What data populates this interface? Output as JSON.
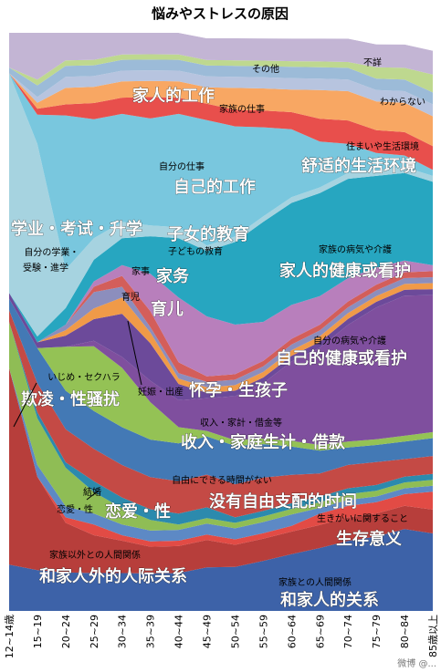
{
  "chart_data": {
    "type": "area",
    "stacking": "percent",
    "title": "悩みやストレスの原因",
    "categories": [
      "12~14歳",
      "15~19",
      "20~24",
      "25~29",
      "30~34",
      "35~39",
      "40~44",
      "45~49",
      "50~54",
      "55~59",
      "60~64",
      "65~69",
      "70~74",
      "75~79",
      "80~84",
      "85歳以上"
    ],
    "ylim": [
      0,
      100
    ],
    "grid": false,
    "legend": "none (labels placed on areas)",
    "series": [
      {
        "color": "#3d62a8",
        "values": [
          8,
          7,
          7,
          7,
          7,
          7,
          7,
          8,
          8,
          9,
          10,
          11,
          12,
          13,
          14,
          13
        ]
      },
      {
        "color": "#b73e3b",
        "values": [
          34,
          16,
          9,
          7,
          6,
          5,
          5,
          5,
          4,
          4,
          4,
          4,
          4,
          4,
          4,
          4
        ]
      },
      {
        "color": "#e24b45",
        "values": [
          0,
          0,
          1,
          2,
          1,
          1,
          1,
          1,
          1,
          1,
          1,
          2,
          2,
          2,
          2,
          3
        ]
      },
      {
        "color": "#5d89c5",
        "values": [
          0,
          2,
          2,
          2,
          2,
          2,
          2,
          2,
          2,
          2,
          2,
          1,
          1,
          1,
          1,
          1
        ]
      },
      {
        "color": "#8fbd55",
        "values": [
          8,
          8,
          7,
          4,
          3,
          2,
          1,
          1,
          1,
          1,
          1,
          1,
          1,
          1,
          1,
          1
        ]
      },
      {
        "color": "#2c8aad",
        "values": [
          0,
          1,
          1,
          2,
          2,
          2,
          2,
          2,
          1,
          1,
          1,
          1,
          1,
          1,
          1,
          1
        ]
      },
      {
        "color": "#c44a45",
        "values": [
          2,
          5,
          6,
          6,
          6,
          6,
          6,
          6,
          6,
          6,
          5,
          4,
          4,
          4,
          3,
          3
        ]
      },
      {
        "color": "#4379b5",
        "values": [
          2,
          6,
          7,
          7,
          7,
          7,
          7,
          7,
          7,
          6,
          5,
          4,
          3,
          3,
          3,
          3
        ]
      },
      {
        "color": "#94c255",
        "values": [
          0,
          0,
          8,
          12,
          11,
          7,
          3,
          1,
          1,
          1,
          1,
          1,
          1,
          1,
          1,
          1
        ]
      },
      {
        "color": "#7f4f9e",
        "values": [
          0,
          0,
          0,
          1,
          2,
          4,
          5,
          6,
          8,
          10,
          14,
          17,
          20,
          23,
          24,
          23
        ]
      },
      {
        "color": "#6c4a9a",
        "values": [
          1,
          1,
          2,
          4,
          8,
          7,
          3,
          1,
          1,
          1,
          1,
          1,
          1,
          1,
          1,
          1
        ]
      },
      {
        "color": "#f09a48",
        "values": [
          0,
          0,
          1,
          2,
          3,
          2,
          1,
          1,
          1,
          1,
          1,
          1,
          1,
          1,
          1,
          1
        ]
      },
      {
        "color": "#8c8ebd",
        "values": [
          0,
          0,
          1,
          3,
          2,
          1,
          1,
          1,
          1,
          1,
          1,
          1,
          1,
          1,
          1,
          1
        ]
      },
      {
        "color": "#d35e5a",
        "values": [
          0,
          0,
          0,
          1,
          2,
          3,
          2,
          1,
          1,
          1,
          1,
          1,
          1,
          1,
          1,
          1
        ]
      },
      {
        "color": "#b87fbc",
        "values": [
          0,
          0,
          0,
          1,
          2,
          7,
          12,
          11,
          9,
          7,
          6,
          5,
          4,
          3,
          2,
          1
        ]
      },
      {
        "color": "#27a6c0",
        "values": [
          0,
          1,
          3,
          4,
          5,
          7,
          11,
          12,
          15,
          18,
          18,
          18,
          17,
          16,
          15,
          14
        ]
      },
      {
        "color": "#a6d3e0",
        "values": [
          38,
          33,
          7,
          4,
          3,
          2,
          2,
          1,
          1,
          1,
          1,
          1,
          1,
          1,
          1,
          1
        ]
      },
      {
        "color": "#79c7de",
        "values": [
          0,
          5,
          28,
          22,
          20,
          20,
          21,
          23,
          20,
          16,
          12,
          8,
          5,
          3,
          2,
          1
        ]
      },
      {
        "color": "#e84f4c",
        "values": [
          0,
          1,
          2,
          3,
          3,
          4,
          3,
          3,
          3,
          3,
          3,
          4,
          4,
          4,
          4,
          4
        ]
      },
      {
        "color": "#f8a763",
        "values": [
          0,
          1,
          3,
          3,
          3,
          3,
          3,
          3,
          4,
          4,
          4,
          5,
          5,
          5,
          5,
          5
        ]
      },
      {
        "color": "#b7c4df",
        "values": [
          0,
          1,
          2,
          2,
          2,
          2,
          2,
          2,
          2,
          2,
          2,
          2,
          2,
          2,
          2,
          2
        ]
      },
      {
        "color": "#9cbbd8",
        "values": [
          1,
          2,
          2,
          2,
          2,
          2,
          2,
          2,
          2,
          2,
          2,
          2,
          2,
          2,
          2,
          2
        ]
      },
      {
        "color": "#bed88f",
        "values": [
          0,
          1,
          1,
          1,
          1,
          1,
          1,
          1,
          1,
          1,
          1,
          1,
          1,
          2,
          2,
          3
        ]
      },
      {
        "color": "#c3b5d4",
        "values": [
          6,
          8,
          5,
          5,
          4,
          4,
          4,
          4,
          4,
          4,
          4,
          4,
          4,
          4,
          4,
          4
        ]
      },
      {
        "color": "#ffffff",
        "values": [
          0,
          0,
          0,
          0,
          0,
          0,
          0,
          1,
          1,
          1,
          1,
          1,
          1,
          2,
          2,
          3
        ]
      }
    ],
    "annotations": [
      {
        "jp": "その他",
        "cn": ""
      },
      {
        "jp": "不詳",
        "cn": ""
      },
      {
        "jp": "わからない",
        "cn": ""
      },
      {
        "jp": "",
        "cn": "家人的工作"
      },
      {
        "jp": "家族の仕事",
        "cn": ""
      },
      {
        "jp": "住まいや生活環境",
        "cn": "舒适的生活环境"
      },
      {
        "jp": "自分の仕事",
        "cn": "自己的工作"
      },
      {
        "jp": "子どもの教育",
        "cn": "子女的教育"
      },
      {
        "jp": "自分の学業・受験・進学",
        "cn": "学业・考试・升学"
      },
      {
        "jp": "家族の病気や介護",
        "cn": "家人的健康或看护"
      },
      {
        "jp": "家事",
        "cn": "家务"
      },
      {
        "jp": "育児",
        "cn": "育儿"
      },
      {
        "jp": "自分の病気や介護",
        "cn": "自己的健康或看护"
      },
      {
        "jp": "いじめ・セクハラ",
        "cn": "欺凌・性骚扰"
      },
      {
        "jp": "妊娠・出産",
        "cn": "怀孕・生孩子"
      },
      {
        "jp": "収入・家計・借金等",
        "cn": "收入・家庭生计・借款"
      },
      {
        "jp": "自由にできる時間がない",
        "cn": "没有自由支配的时间"
      },
      {
        "jp": "結婚",
        "cn": ""
      },
      {
        "jp": "恋愛・性",
        "cn": "恋爱・性"
      },
      {
        "jp": "生きがいに関すること",
        "cn": "生存意义"
      },
      {
        "jp": "家族以外との人間関係",
        "cn": "和家人外的人际关系"
      },
      {
        "jp": "家族との人間関係",
        "cn": "和家人的关系"
      }
    ]
  },
  "watermark": "微博 @..."
}
